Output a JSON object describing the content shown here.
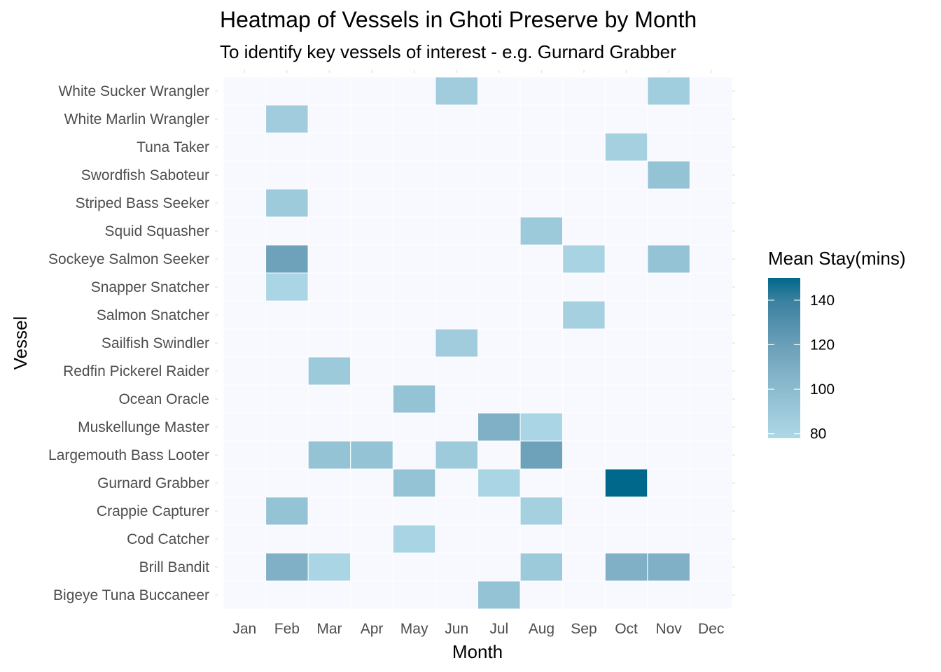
{
  "chart_data": {
    "type": "heatmap",
    "title": "Heatmap of Vessels in Ghoti Preserve by Month",
    "subtitle": "To identify key vessels of interest - e.g. Gurnard Grabber",
    "xlabel": "Month",
    "ylabel": "Vessel",
    "x": [
      "Jan",
      "Feb",
      "Mar",
      "Apr",
      "May",
      "Jun",
      "Jul",
      "Aug",
      "Sep",
      "Oct",
      "Nov",
      "Dec"
    ],
    "y": [
      "White Sucker Wrangler",
      "White Marlin Wrangler",
      "Tuna Taker",
      "Swordfish Saboteur",
      "Striped Bass Seeker",
      "Squid Squasher",
      "Sockeye Salmon Seeker",
      "Snapper Snatcher",
      "Salmon Snatcher",
      "Sailfish Swindler",
      "Redfin Pickerel Raider",
      "Ocean Oracle",
      "Muskellunge Master",
      "Largemouth Bass Looter",
      "Gurnard Grabber",
      "Crappie Capturer",
      "Cod Catcher",
      "Brill Bandit",
      "Bigeye Tuna Buccaneer"
    ],
    "values": [
      [
        null,
        null,
        null,
        null,
        null,
        87,
        null,
        null,
        null,
        null,
        86,
        null
      ],
      [
        null,
        87,
        null,
        null,
        null,
        null,
        null,
        null,
        null,
        null,
        null,
        null
      ],
      [
        null,
        null,
        null,
        null,
        null,
        null,
        null,
        null,
        null,
        84,
        null,
        null
      ],
      [
        null,
        null,
        null,
        null,
        null,
        null,
        null,
        null,
        null,
        null,
        94,
        null
      ],
      [
        null,
        88,
        null,
        null,
        null,
        null,
        null,
        null,
        null,
        null,
        null,
        null
      ],
      [
        null,
        null,
        null,
        null,
        null,
        null,
        null,
        89,
        null,
        null,
        null,
        null
      ],
      [
        null,
        118,
        null,
        null,
        null,
        null,
        null,
        null,
        82,
        null,
        94,
        null
      ],
      [
        null,
        80,
        null,
        null,
        null,
        null,
        null,
        null,
        null,
        null,
        null,
        null
      ],
      [
        null,
        null,
        null,
        null,
        null,
        null,
        null,
        null,
        84,
        null,
        null,
        null
      ],
      [
        null,
        null,
        null,
        null,
        null,
        87,
        null,
        null,
        null,
        null,
        null,
        null
      ],
      [
        null,
        null,
        89,
        null,
        null,
        null,
        null,
        null,
        null,
        null,
        null,
        null
      ],
      [
        null,
        null,
        null,
        null,
        94,
        null,
        null,
        null,
        null,
        null,
        null,
        null
      ],
      [
        null,
        null,
        null,
        null,
        null,
        null,
        108,
        80,
        null,
        null,
        null,
        null
      ],
      [
        null,
        null,
        94,
        94,
        null,
        88,
        null,
        118,
        null,
        null,
        null,
        null
      ],
      [
        null,
        null,
        null,
        null,
        94,
        null,
        80,
        null,
        null,
        150,
        null,
        null
      ],
      [
        null,
        94,
        null,
        null,
        null,
        null,
        null,
        84,
        null,
        null,
        null,
        null
      ],
      [
        null,
        null,
        null,
        null,
        81,
        null,
        null,
        null,
        null,
        null,
        null,
        null
      ],
      [
        null,
        108,
        80,
        null,
        null,
        null,
        null,
        89,
        null,
        108,
        108,
        null
      ],
      [
        null,
        null,
        null,
        null,
        null,
        null,
        94,
        null,
        null,
        null,
        null,
        null
      ]
    ],
    "legend": {
      "title": "Mean Stay(mins)",
      "ticks": [
        80,
        100,
        120,
        140
      ],
      "range": [
        78,
        150
      ],
      "placement": "right"
    },
    "colors": {
      "low": "#add8e6",
      "high": "#00688b",
      "na": "#f8f8ff"
    }
  }
}
